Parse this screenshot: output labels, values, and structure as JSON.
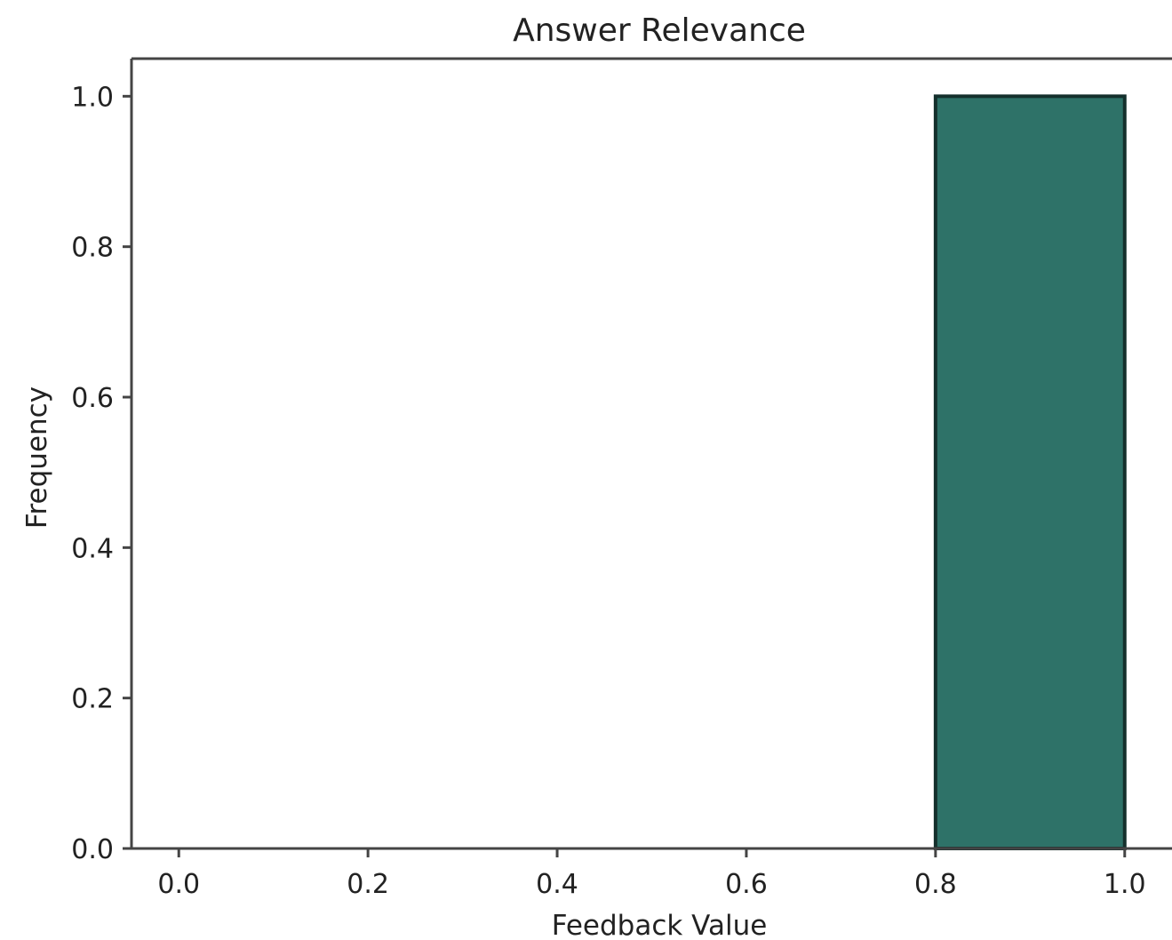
{
  "chart_data": {
    "type": "bar",
    "title": "Answer Relevance",
    "xlabel": "Feedback Value",
    "ylabel": "Frequency",
    "xlim": [
      -0.05,
      1.05
    ],
    "ylim": [
      0.0,
      1.05
    ],
    "x_ticks": [
      0.0,
      0.2,
      0.4,
      0.6,
      0.8,
      1.0
    ],
    "x_tick_labels": [
      "0.0",
      "0.2",
      "0.4",
      "0.6",
      "0.8",
      "1.0"
    ],
    "y_ticks": [
      0.0,
      0.2,
      0.4,
      0.6,
      0.8,
      1.0
    ],
    "y_tick_labels": [
      "0.0",
      "0.2",
      "0.4",
      "0.6",
      "0.8",
      "1.0"
    ],
    "bins": [
      {
        "x_start": 0.8,
        "x_end": 1.0,
        "value": 1.0
      }
    ],
    "grid": false,
    "legend": "none",
    "bar_color": "#2e7268",
    "bar_edge_color": "#14302c",
    "axis_color": "#444444",
    "text_color": "#222222"
  }
}
